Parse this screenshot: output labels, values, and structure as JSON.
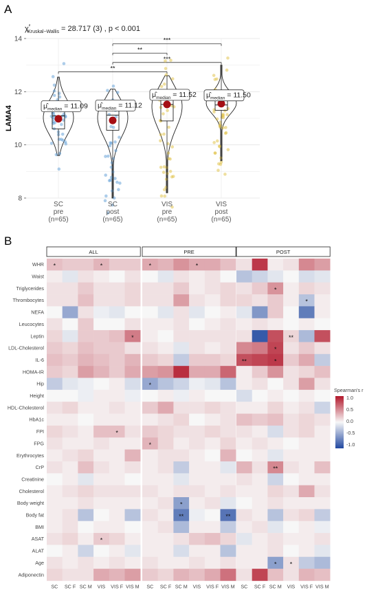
{
  "panel_a_letter": "A",
  "panel_b_letter": "B",
  "chart_data": [
    {
      "type": "violin",
      "stat_text": "= 28.717 (3) , p < 0.001",
      "stat_symbol": "χ²",
      "stat_sub": "Kruskal−Wallis",
      "ylabel": "LAMA4",
      "ylim": [
        8,
        14
      ],
      "yticks": [
        8,
        10,
        12,
        14
      ],
      "groups": [
        {
          "label": [
            "SC",
            "pre",
            "(n=65)"
          ],
          "median_label": "= 11.09",
          "median": 11.09,
          "mean": 10.98,
          "q1": 10.6,
          "q3": 11.45,
          "min": 9.6,
          "max": 12.55,
          "color": "#5b9bd5"
        },
        {
          "label": [
            "SC",
            "post",
            "(n=65)"
          ],
          "median_label": "= 11.12",
          "median": 11.12,
          "mean": 10.92,
          "q1": 10.55,
          "q3": 11.5,
          "min": 8.0,
          "max": 12.1,
          "color": "#5b9bd5"
        },
        {
          "label": [
            "VIS",
            "pre",
            "(n=65)"
          ],
          "median_label": "= 11.52",
          "median": 11.52,
          "mean": 11.52,
          "q1": 10.9,
          "q3": 12.0,
          "min": 8.2,
          "max": 12.6,
          "color": "#e0c040"
        },
        {
          "label": [
            "VIS",
            "post",
            "(n=65)"
          ],
          "median_label": "= 11.50",
          "median": 11.5,
          "mean": 11.55,
          "q1": 11.3,
          "q3": 11.85,
          "min": 9.4,
          "max": 13.0,
          "color": "#e0c040"
        }
      ],
      "median_symbol": "μ̂",
      "median_sub": "median",
      "brackets": [
        {
          "from": 1,
          "to": 3,
          "y": 13.8,
          "label": "***"
        },
        {
          "from": 1,
          "to": 2,
          "y": 13.45,
          "label": "**"
        },
        {
          "from": 1,
          "to": 3,
          "y": 13.1,
          "label": "***"
        },
        {
          "from": 0,
          "to": 2,
          "y": 12.75,
          "label": "**"
        }
      ]
    },
    {
      "type": "heatmap",
      "legend_title": "Spearman's r",
      "legend_ticks": [
        "1.0",
        "0.5",
        "0.0",
        "-0.5",
        "-1.0"
      ],
      "columns": [
        "SC",
        "SC F",
        "SC M",
        "VIS",
        "VIS F",
        "VIS M"
      ],
      "rows": [
        "WHR",
        "Waist",
        "Triglycerides",
        "Thrombocytes",
        "NEFA",
        "Leucocytes",
        "Leptin",
        "LDL-Cholesterol",
        "IL-6",
        "HOMA-IR",
        "Hip",
        "Height",
        "HDL-Cholesterol",
        "HbA1c",
        "FPI",
        "FPG",
        "Erythrocytes",
        "CrP",
        "Creatinine",
        "Cholesterol",
        "Body weight",
        "Body fat",
        "BMI",
        "ASAT",
        "ALAT",
        "Age",
        "Adiponectin"
      ],
      "facets": [
        {
          "name": "ALL",
          "values": [
            [
              0.25,
              0.2,
              0.2,
              0.3,
              0.2,
              0.2
            ],
            [
              0.05,
              -0.1,
              0.1,
              0.05,
              0.0,
              0.1
            ],
            [
              0.1,
              0.1,
              0.2,
              0.1,
              0.1,
              0.15
            ],
            [
              0.1,
              0.1,
              0.25,
              0.1,
              0.1,
              0.15
            ],
            [
              0.0,
              -0.45,
              0.1,
              -0.05,
              -0.1,
              0.0
            ],
            [
              0.1,
              0.0,
              0.2,
              0.0,
              0.0,
              0.1
            ],
            [
              0.15,
              -0.1,
              0.2,
              0.2,
              0.25,
              0.55
            ],
            [
              0.2,
              0.15,
              0.25,
              0.2,
              0.2,
              0.1
            ],
            [
              0.25,
              0.2,
              0.3,
              0.25,
              0.2,
              0.3
            ],
            [
              0.2,
              0.15,
              0.4,
              0.3,
              0.2,
              0.35
            ],
            [
              -0.25,
              -0.1,
              -0.05,
              0.0,
              0.05,
              -0.15
            ],
            [
              0.0,
              0.0,
              -0.05,
              0.05,
              0.05,
              -0.05
            ],
            [
              0.1,
              0.15,
              0.05,
              0.05,
              0.1,
              0.05
            ],
            [
              0.05,
              0.05,
              0.0,
              0.05,
              0.05,
              0.05
            ],
            [
              0.15,
              0.1,
              0.05,
              0.25,
              0.25,
              0.1
            ],
            [
              0.1,
              0.05,
              0.05,
              0.1,
              0.05,
              0.05
            ],
            [
              0.05,
              0.1,
              0.15,
              0.05,
              0.05,
              0.3
            ],
            [
              0.1,
              0.05,
              0.25,
              0.1,
              0.05,
              0.1
            ],
            [
              0.0,
              0.05,
              -0.1,
              0.05,
              0.05,
              0.0
            ],
            [
              0.05,
              0.1,
              0.15,
              0.1,
              0.1,
              0.1
            ],
            [
              0.05,
              0.05,
              0.1,
              0.05,
              0.05,
              0.05
            ],
            [
              0.05,
              0.1,
              -0.3,
              0.0,
              0.05,
              -0.3
            ],
            [
              0.05,
              0.1,
              0.0,
              0.05,
              0.05,
              0.0
            ],
            [
              0.1,
              0.15,
              0.05,
              0.2,
              0.15,
              0.05
            ],
            [
              0.0,
              0.05,
              -0.2,
              0.0,
              0.05,
              -0.1
            ],
            [
              0.1,
              0.05,
              0.1,
              0.05,
              0.1,
              0.05
            ],
            [
              0.15,
              0.1,
              0.1,
              0.35,
              0.3,
              0.4
            ]
          ],
          "stars": [
            {
              "row": 0,
              "col": 0,
              "label": "*"
            },
            {
              "row": 0,
              "col": 3,
              "label": "*"
            },
            {
              "row": 6,
              "col": 5,
              "label": "*"
            },
            {
              "row": 14,
              "col": 4,
              "label": "*"
            },
            {
              "row": 23,
              "col": 3,
              "label": "*"
            }
          ]
        },
        {
          "name": "PRE",
          "values": [
            [
              0.35,
              0.3,
              0.45,
              0.35,
              0.35,
              0.25
            ],
            [
              0.0,
              -0.1,
              0.1,
              0.05,
              0.1,
              0.0
            ],
            [
              0.1,
              0.1,
              0.2,
              0.05,
              0.1,
              0.15
            ],
            [
              0.1,
              0.1,
              0.4,
              0.1,
              0.05,
              0.15
            ],
            [
              0.0,
              -0.1,
              0.1,
              -0.1,
              0.0,
              0.05
            ],
            [
              0.05,
              0.05,
              0.1,
              0.0,
              0.05,
              0.1
            ],
            [
              0.05,
              0.0,
              0.1,
              0.1,
              0.1,
              0.1
            ],
            [
              0.1,
              0.05,
              -0.1,
              0.1,
              0.05,
              0.1
            ],
            [
              0.2,
              0.15,
              -0.25,
              0.2,
              0.2,
              0.15
            ],
            [
              0.4,
              0.45,
              0.9,
              0.35,
              0.35,
              0.65
            ],
            [
              -0.45,
              -0.3,
              -0.2,
              -0.05,
              -0.1,
              -0.3
            ],
            [
              0.0,
              0.05,
              -0.05,
              0.05,
              0.0,
              0.0
            ],
            [
              0.2,
              0.35,
              0.1,
              0.1,
              0.15,
              0.1
            ],
            [
              0.05,
              0.1,
              0.15,
              0.0,
              0.05,
              0.1
            ],
            [
              0.2,
              0.15,
              0.1,
              0.1,
              0.15,
              0.1
            ],
            [
              0.3,
              0.15,
              0.05,
              0.1,
              0.05,
              0.15
            ],
            [
              0.05,
              0.1,
              0.1,
              0.05,
              0.0,
              0.3
            ],
            [
              0.05,
              0.1,
              -0.25,
              0.05,
              0.05,
              -0.1
            ],
            [
              0.05,
              0.05,
              -0.1,
              0.05,
              0.05,
              0.05
            ],
            [
              0.1,
              0.05,
              0.1,
              0.1,
              0.05,
              0.1
            ],
            [
              0.05,
              0.1,
              -0.5,
              0.05,
              0.1,
              -0.1
            ],
            [
              0.1,
              0.05,
              -0.7,
              -0.05,
              0.0,
              -0.75
            ],
            [
              0.05,
              0.1,
              -0.35,
              0.05,
              0.05,
              -0.25
            ],
            [
              0.05,
              0.05,
              0.1,
              0.2,
              0.25,
              0.15
            ],
            [
              0.05,
              0.05,
              -0.15,
              0.05,
              0.05,
              -0.3
            ],
            [
              0.1,
              0.05,
              0.05,
              0.1,
              0.05,
              0.1
            ],
            [
              0.2,
              0.15,
              0.3,
              0.25,
              0.35,
              0.6
            ]
          ],
          "stars": [
            {
              "row": 0,
              "col": 0,
              "label": "*"
            },
            {
              "row": 0,
              "col": 3,
              "label": "*"
            },
            {
              "row": 10,
              "col": 0,
              "label": "*"
            },
            {
              "row": 15,
              "col": 0,
              "label": "*"
            },
            {
              "row": 20,
              "col": 2,
              "label": "*"
            },
            {
              "row": 21,
              "col": 2,
              "label": "**"
            },
            {
              "row": 21,
              "col": 5,
              "label": "**"
            }
          ]
        },
        {
          "name": "POST",
          "values": [
            [
              0.1,
              0.85,
              0.05,
              0.1,
              0.5,
              0.4
            ],
            [
              -0.3,
              -0.2,
              -0.1,
              0.0,
              -0.15,
              -0.1
            ],
            [
              0.1,
              0.2,
              0.45,
              0.05,
              0.15,
              0.1
            ],
            [
              0.15,
              0.1,
              0.2,
              0.05,
              -0.3,
              0.05
            ],
            [
              -0.1,
              -0.55,
              0.2,
              0.0,
              -0.7,
              0.05
            ],
            [
              0.05,
              0.1,
              0.05,
              0.0,
              0.05,
              0.0
            ],
            [
              0.1,
              -0.9,
              0.75,
              0.15,
              -0.35,
              0.75
            ],
            [
              0.5,
              0.55,
              0.8,
              0.1,
              0.2,
              0.1
            ],
            [
              0.75,
              0.8,
              0.85,
              0.2,
              0.35,
              -0.25
            ],
            [
              0.05,
              0.2,
              0.45,
              0.1,
              0.15,
              0.25
            ],
            [
              0.05,
              0.1,
              0.0,
              0.1,
              0.4,
              0.1
            ],
            [
              -0.15,
              0.0,
              0.05,
              0.0,
              0.05,
              0.0
            ],
            [
              0.05,
              0.05,
              0.15,
              0.05,
              0.1,
              -0.2
            ],
            [
              0.25,
              0.2,
              0.25,
              0.1,
              0.15,
              0.1
            ],
            [
              0.1,
              0.05,
              -0.15,
              0.1,
              0.15,
              0.05
            ],
            [
              0.05,
              0.1,
              0.05,
              0.0,
              0.05,
              0.05
            ],
            [
              0.0,
              0.05,
              -0.1,
              0.05,
              0.05,
              0.05
            ],
            [
              0.3,
              0.1,
              0.5,
              0.1,
              0.05,
              0.25
            ],
            [
              0.1,
              0.05,
              -0.2,
              0.0,
              0.05,
              0.05
            ],
            [
              0.05,
              0.05,
              0.15,
              0.1,
              0.35,
              0.1
            ],
            [
              0.0,
              0.05,
              0.1,
              0.05,
              0.05,
              0.05
            ],
            [
              0.1,
              0.05,
              -0.3,
              0.1,
              0.15,
              -0.25
            ],
            [
              0.05,
              0.1,
              -0.1,
              0.0,
              0.05,
              -0.05
            ],
            [
              -0.1,
              0.05,
              0.1,
              0.05,
              0.05,
              0.1
            ],
            [
              0.05,
              0.05,
              0.1,
              0.0,
              0.05,
              -0.1
            ],
            [
              0.05,
              0.05,
              -0.5,
              0.1,
              -0.25,
              -0.35
            ],
            [
              0.1,
              0.8,
              0.25,
              0.1,
              0.3,
              0.25
            ]
          ],
          "stars": [
            {
              "row": 2,
              "col": 2,
              "label": "*"
            },
            {
              "row": 3,
              "col": 4,
              "label": "*"
            },
            {
              "row": 6,
              "col": 3,
              "label": "**"
            },
            {
              "row": 7,
              "col": 2,
              "label": "*"
            },
            {
              "row": 8,
              "col": 0,
              "label": "**"
            },
            {
              "row": 8,
              "col": 2,
              "label": "*"
            },
            {
              "row": 17,
              "col": 2,
              "label": "**"
            },
            {
              "row": 25,
              "col": 2,
              "label": "*"
            },
            {
              "row": 25,
              "col": 3,
              "label": "*"
            }
          ]
        }
      ]
    }
  ]
}
